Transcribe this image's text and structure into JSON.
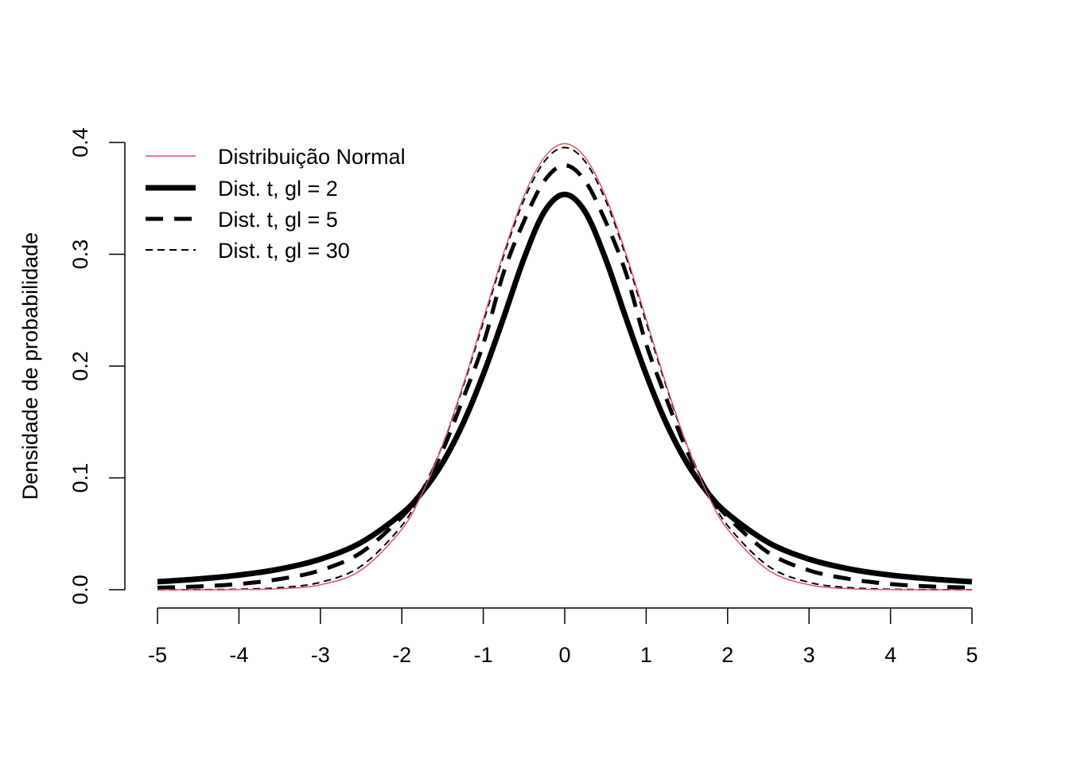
{
  "chart_data": {
    "type": "line",
    "title": "",
    "xlabel": "",
    "ylabel": "Densidade de probabilidade",
    "xlim": [
      -5,
      5
    ],
    "ylim": [
      0,
      0.4
    ],
    "x_ticks": [
      "-5",
      "-4",
      "-3",
      "-2",
      "-1",
      "0",
      "1",
      "2",
      "3",
      "4",
      "5"
    ],
    "y_ticks": [
      "0.0",
      "0.1",
      "0.2",
      "0.3",
      "0.4"
    ],
    "grid": false,
    "legend_position": "top-left",
    "x": [
      -5,
      -4.5,
      -4,
      -3.5,
      -3,
      -2.5,
      -2,
      -1.75,
      -1.5,
      -1.25,
      -1,
      -0.75,
      -0.5,
      -0.25,
      0,
      0.25,
      0.5,
      0.75,
      1,
      1.25,
      1.5,
      1.75,
      2,
      2.5,
      3,
      3.5,
      4,
      4.5,
      5
    ],
    "series": [
      {
        "name": "Distribuição Normal",
        "color": "#DF536B",
        "style": "solid",
        "values": [
          1.5e-06,
          1.6e-05,
          0.000134,
          0.000873,
          0.00443,
          0.0175,
          0.054,
          0.0863,
          0.1295,
          0.1826,
          0.242,
          0.3011,
          0.3521,
          0.3867,
          0.3989,
          0.3867,
          0.3521,
          0.3011,
          0.242,
          0.1826,
          0.1295,
          0.0863,
          0.054,
          0.0175,
          0.00443,
          0.000873,
          0.000134,
          1.6e-05,
          1.5e-06
        ]
      },
      {
        "name": "Dist. t, gl = 2",
        "color": "#000000",
        "style": "solid-thick",
        "values": [
          0.0071,
          0.0096,
          0.0131,
          0.0185,
          0.0273,
          0.0422,
          0.068,
          0.0873,
          0.1134,
          0.1484,
          0.1925,
          0.2434,
          0.2962,
          0.3381,
          0.3536,
          0.3381,
          0.2962,
          0.2434,
          0.1925,
          0.1484,
          0.1134,
          0.0873,
          0.068,
          0.0422,
          0.0273,
          0.0185,
          0.0131,
          0.0096,
          0.0071
        ]
      },
      {
        "name": "Dist. t, gl = 5",
        "color": "#000000",
        "style": "dashed-thick",
        "values": [
          0.0018,
          0.0029,
          0.0051,
          0.0095,
          0.0173,
          0.0332,
          0.0651,
          0.0886,
          0.1245,
          0.1705,
          0.2197,
          0.2836,
          0.3296,
          0.3656,
          0.3796,
          0.3656,
          0.3296,
          0.2836,
          0.2197,
          0.1705,
          0.1245,
          0.0886,
          0.0651,
          0.0332,
          0.0173,
          0.0095,
          0.0051,
          0.0029,
          0.0018
        ]
      },
      {
        "name": "Dist. t, gl = 30",
        "color": "#000000",
        "style": "dashed-thin",
        "values": [
          1.3e-05,
          5.5e-05,
          0.000429,
          0.00178,
          0.0066,
          0.0211,
          0.0573,
          0.0889,
          0.1292,
          0.1812,
          0.2392,
          0.2986,
          0.3486,
          0.383,
          0.3955,
          0.383,
          0.3486,
          0.2986,
          0.2392,
          0.1812,
          0.1292,
          0.0889,
          0.0573,
          0.0211,
          0.0066,
          0.00178,
          0.000429,
          5.5e-05,
          1.3e-05
        ]
      }
    ]
  }
}
